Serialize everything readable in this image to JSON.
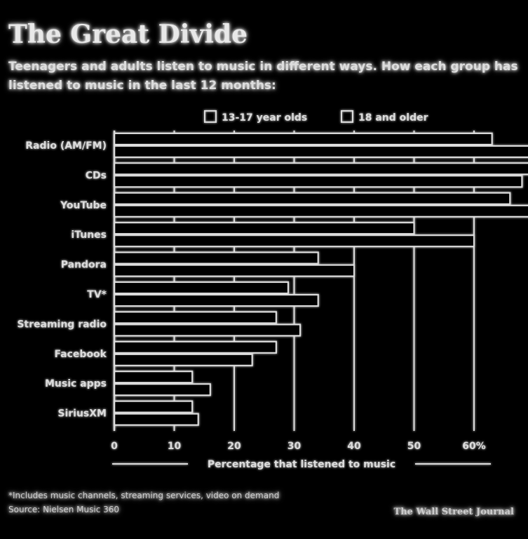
{
  "title": "The Great Divide",
  "subtitle": "Teenagers and adults listen to music in different ways. How each group has listened to music in the last 12 months:",
  "footnote_line1": "*Includes music channels, streaming services, video on demand",
  "footnote_line2": "Source: Nielsen Music 360",
  "credit": "The Wall Street Journal",
  "colors": {
    "background": "#000000",
    "foreground": "#dddddd"
  },
  "chart_data": {
    "type": "bar",
    "orientation": "horizontal",
    "categories": [
      "Radio (AM/FM)",
      "CDs",
      "YouTube",
      "iTunes",
      "Pandora",
      "TV*",
      "Streaming radio",
      "Facebook",
      "Music apps",
      "SiriusXM"
    ],
    "series": [
      {
        "name": "13-17 year olds",
        "values": [
          63,
          73,
          66,
          50,
          34,
          29,
          27,
          27,
          13,
          13
        ]
      },
      {
        "name": "18 and older",
        "values": [
          76,
          68,
          72,
          60,
          40,
          34,
          31,
          23,
          16,
          14
        ]
      }
    ],
    "xlabel": "Percentage that listened to music",
    "xlim": [
      0,
      80
    ],
    "xticks": [
      0,
      10,
      20,
      30,
      40,
      50,
      60
    ],
    "xtick_labels": [
      "0",
      "10",
      "20",
      "30",
      "40",
      "50",
      "60%"
    ],
    "legend_position": "top",
    "grid": true
  }
}
